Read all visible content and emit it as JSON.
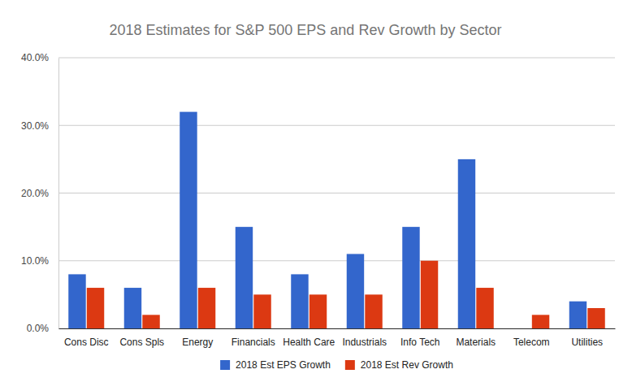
{
  "chart_data": {
    "type": "bar",
    "title": "2018 Estimates for S&P 500 EPS and Rev Growth by Sector",
    "categories": [
      "Cons Disc",
      "Cons Spls",
      "Energy",
      "Financials",
      "Health Care",
      "Industrials",
      "Info Tech",
      "Materials",
      "Telecom",
      "Utilities"
    ],
    "series": [
      {
        "name": "2018 Est EPS Growth",
        "color": "#3366cc",
        "values": [
          8,
          6,
          32,
          15,
          8,
          11,
          15,
          25,
          0,
          4
        ]
      },
      {
        "name": "2018 Est Rev Growth",
        "color": "#dc3912",
        "values": [
          6,
          2,
          6,
          5,
          5,
          5,
          10,
          6,
          2,
          3
        ]
      }
    ],
    "ylim": [
      0,
      40
    ],
    "yticks": [
      {
        "value": 0,
        "label": "0.0%"
      },
      {
        "value": 10,
        "label": "10.0%"
      },
      {
        "value": 20,
        "label": "20.0%"
      },
      {
        "value": 30,
        "label": "30.0%"
      },
      {
        "value": 40,
        "label": "40.0%"
      }
    ],
    "grid": true,
    "legend": "bottom"
  }
}
